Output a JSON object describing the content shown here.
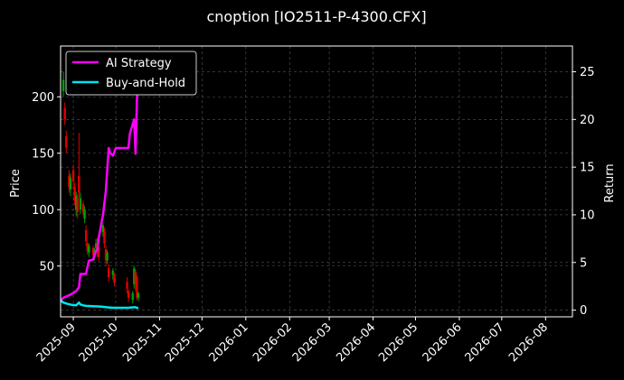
{
  "chart_data": {
    "type": "line",
    "title": "cnoption [IO2511-P-4300.CFX]",
    "xlabel": "",
    "ylabel": "Price",
    "y2label": "Return",
    "x_ticks": [
      "2025-09",
      "2025-10",
      "2025-11",
      "2025-12",
      "2026-01",
      "2026-02",
      "2026-03",
      "2026-04",
      "2026-05",
      "2026-06",
      "2026-07",
      "2026-08"
    ],
    "x_range": [
      "2025-08-23",
      "2026-08-20"
    ],
    "ylim": [
      5,
      245
    ],
    "y_ticks": [
      50,
      100,
      150,
      200
    ],
    "y2lim": [
      -0.7,
      27.7
    ],
    "y2_ticks": [
      0,
      5,
      10,
      15,
      20,
      25
    ],
    "grid": true,
    "legend_position": "top-left",
    "colors": {
      "background": "#000000",
      "up_candle": "#00a000",
      "down_candle": "#e00000",
      "ai_strategy": "#ff00ff",
      "buy_and_hold": "#00e5ee",
      "text": "#ffffff",
      "grid": "#555555"
    },
    "candles": [
      {
        "date": "2025-08-25",
        "open": 205,
        "close": 215,
        "high": 222,
        "low": 200
      },
      {
        "date": "2025-08-26",
        "open": 190,
        "close": 180,
        "high": 195,
        "low": 175
      },
      {
        "date": "2025-08-27",
        "open": 165,
        "close": 155,
        "high": 170,
        "low": 150
      },
      {
        "date": "2025-08-29",
        "open": 130,
        "close": 120,
        "high": 135,
        "low": 115
      },
      {
        "date": "2025-08-30",
        "open": 118,
        "close": 128,
        "high": 132,
        "low": 112
      },
      {
        "date": "2025-09-01",
        "open": 135,
        "close": 125,
        "high": 140,
        "low": 118
      },
      {
        "date": "2025-09-02",
        "open": 120,
        "close": 108,
        "high": 124,
        "low": 104
      },
      {
        "date": "2025-09-03",
        "open": 100,
        "close": 112,
        "high": 116,
        "low": 94
      },
      {
        "date": "2025-09-04",
        "open": 110,
        "close": 98,
        "high": 114,
        "low": 92
      },
      {
        "date": "2025-09-05",
        "open": 130,
        "close": 115,
        "high": 168,
        "low": 110
      },
      {
        "date": "2025-09-06",
        "open": 100,
        "close": 110,
        "high": 115,
        "low": 96
      },
      {
        "date": "2025-09-08",
        "open": 105,
        "close": 98,
        "high": 108,
        "low": 95
      },
      {
        "date": "2025-09-09",
        "open": 92,
        "close": 100,
        "high": 103,
        "low": 88
      },
      {
        "date": "2025-09-10",
        "open": 82,
        "close": 72,
        "high": 86,
        "low": 68
      },
      {
        "date": "2025-09-11",
        "open": 70,
        "close": 64,
        "high": 72,
        "low": 60
      },
      {
        "date": "2025-09-12",
        "open": 62,
        "close": 68,
        "high": 70,
        "low": 58
      },
      {
        "date": "2025-09-15",
        "open": 66,
        "close": 60,
        "high": 68,
        "low": 56
      },
      {
        "date": "2025-09-16",
        "open": 58,
        "close": 64,
        "high": 66,
        "low": 55
      },
      {
        "date": "2025-09-17",
        "open": 66,
        "close": 70,
        "high": 74,
        "low": 62
      },
      {
        "date": "2025-09-18",
        "open": 70,
        "close": 62,
        "high": 75,
        "low": 58
      },
      {
        "date": "2025-09-19",
        "open": 66,
        "close": 58,
        "high": 68,
        "low": 54
      },
      {
        "date": "2025-09-22",
        "open": 80,
        "close": 86,
        "high": 88,
        "low": 76
      },
      {
        "date": "2025-09-23",
        "open": 80,
        "close": 70,
        "high": 84,
        "low": 66
      },
      {
        "date": "2025-09-24",
        "open": 65,
        "close": 55,
        "high": 68,
        "low": 50
      },
      {
        "date": "2025-09-25",
        "open": 55,
        "close": 62,
        "high": 64,
        "low": 52
      },
      {
        "date": "2025-09-26",
        "open": 48,
        "close": 40,
        "high": 52,
        "low": 36
      },
      {
        "date": "2025-09-29",
        "open": 42,
        "close": 46,
        "high": 48,
        "low": 38
      },
      {
        "date": "2025-09-30",
        "open": 42,
        "close": 35,
        "high": 44,
        "low": 32
      },
      {
        "date": "2025-10-09",
        "open": 36,
        "close": 30,
        "high": 40,
        "low": 26
      },
      {
        "date": "2025-10-10",
        "open": 28,
        "close": 22,
        "high": 30,
        "low": 18
      },
      {
        "date": "2025-10-13",
        "open": 20,
        "close": 26,
        "high": 28,
        "low": 17
      },
      {
        "date": "2025-10-14",
        "open": 34,
        "close": 48,
        "high": 50,
        "low": 30
      },
      {
        "date": "2025-10-15",
        "open": 45,
        "close": 35,
        "high": 47,
        "low": 28
      },
      {
        "date": "2025-10-16",
        "open": 40,
        "close": 22,
        "high": 42,
        "low": 20
      },
      {
        "date": "2025-10-17",
        "open": 22,
        "close": 26,
        "high": 27,
        "low": 19
      }
    ],
    "series": [
      {
        "name": "AI Strategy",
        "axis": "right",
        "x": [
          "2025-08-23",
          "2025-08-25",
          "2025-08-28",
          "2025-08-31",
          "2025-09-03",
          "2025-09-05",
          "2025-09-06",
          "2025-09-10",
          "2025-09-12",
          "2025-09-15",
          "2025-09-17",
          "2025-09-18",
          "2025-09-19",
          "2025-09-22",
          "2025-09-24",
          "2025-09-26",
          "2025-09-27",
          "2025-09-29",
          "2025-10-01",
          "2025-10-09",
          "2025-10-10",
          "2025-10-11",
          "2025-10-14",
          "2025-10-15",
          "2025-10-16",
          "2025-10-17"
        ],
        "y": [
          1.0,
          1.3,
          1.5,
          1.7,
          2.0,
          2.4,
          3.8,
          3.8,
          5.2,
          5.3,
          6.2,
          6.3,
          7.6,
          10.0,
          12.5,
          17.0,
          16.5,
          16.2,
          17.0,
          17.0,
          17.0,
          18.5,
          20.0,
          16.4,
          22.0,
          25.5
        ]
      },
      {
        "name": "Buy-and-Hold",
        "axis": "right",
        "x": [
          "2025-08-23",
          "2025-08-25",
          "2025-08-28",
          "2025-08-31",
          "2025-09-03",
          "2025-09-05",
          "2025-09-06",
          "2025-09-08",
          "2025-09-10",
          "2025-09-15",
          "2025-09-20",
          "2025-09-26",
          "2025-09-29",
          "2025-10-06",
          "2025-10-10",
          "2025-10-14",
          "2025-10-15",
          "2025-10-16",
          "2025-10-17"
        ],
        "y": [
          1.0,
          0.8,
          0.65,
          0.55,
          0.5,
          0.8,
          0.6,
          0.5,
          0.45,
          0.42,
          0.38,
          0.28,
          0.25,
          0.25,
          0.25,
          0.3,
          0.3,
          0.25,
          0.2
        ]
      }
    ]
  }
}
